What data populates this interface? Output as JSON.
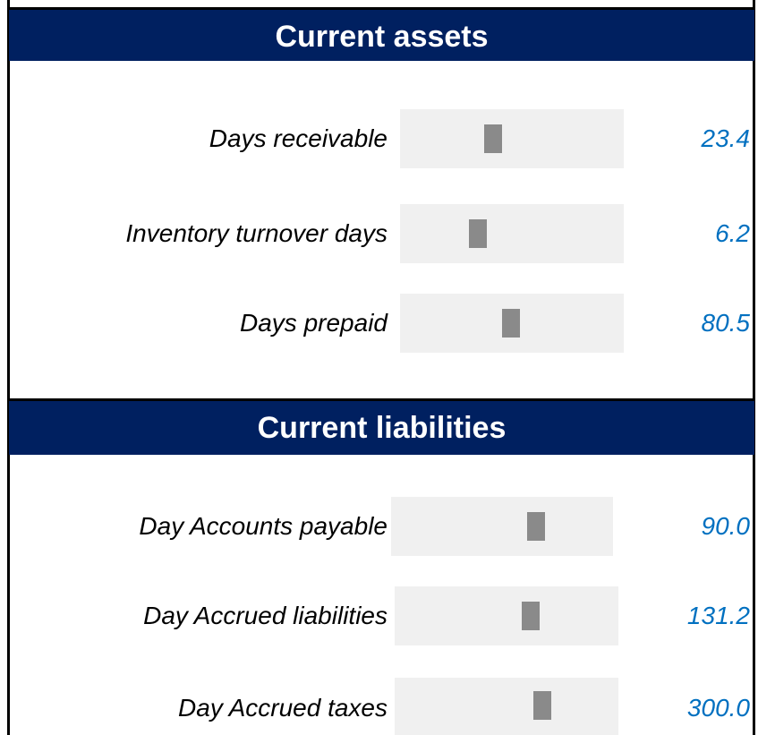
{
  "sections": [
    {
      "title": "Current assets",
      "rows": [
        {
          "label": "Days receivable",
          "value": "23.4"
        },
        {
          "label": "Inventory turnover days",
          "value": "6.2"
        },
        {
          "label": "Days prepaid",
          "value": "80.5"
        }
      ]
    },
    {
      "title": "Current liabilities",
      "rows": [
        {
          "label": "Day Accounts payable",
          "value": "90.0"
        },
        {
          "label": "Day Accrued liabilities",
          "value": "131.2"
        },
        {
          "label": "Day Accrued taxes",
          "value": "300.0"
        }
      ]
    }
  ]
}
